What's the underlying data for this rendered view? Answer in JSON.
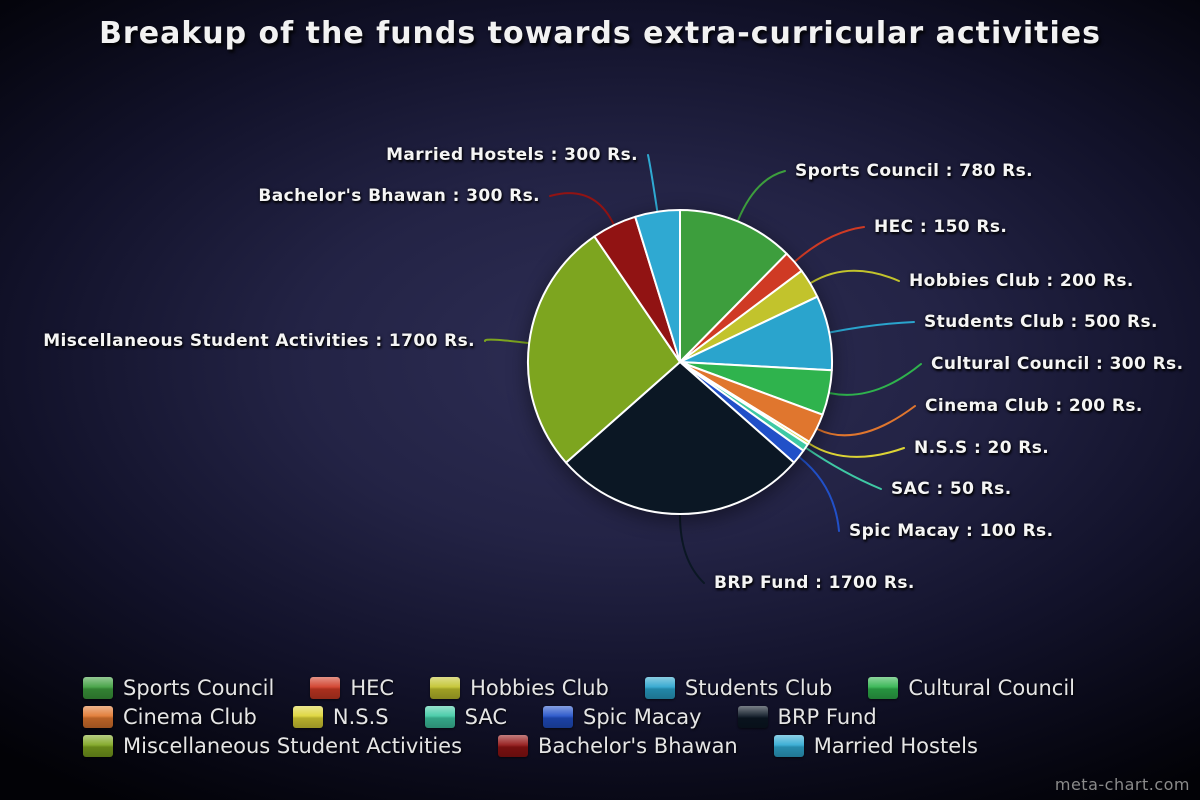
{
  "title": "Breakup of the funds towards extra-curricular activities",
  "watermark": "meta-chart.com",
  "chart_data": {
    "type": "pie",
    "title": "Breakup of the funds towards extra-curricular activities",
    "unit": "Rs.",
    "total": 6300,
    "start_angle_deg": 0,
    "direction": "clockwise",
    "legend_position": "bottom",
    "background_colors": {
      "inner": "#2e2e55",
      "outer": "#05050e"
    },
    "slices": [
      {
        "label": "Sports Council",
        "value": 780,
        "color": "#3d9e3d",
        "callout": "Sports Council : 780 Rs."
      },
      {
        "label": "HEC",
        "value": 150,
        "color": "#cf3a24",
        "callout": "HEC : 150 Rs."
      },
      {
        "label": "Hobbies Club",
        "value": 200,
        "color": "#c2c32c",
        "callout": "Hobbies Club : 200 Rs."
      },
      {
        "label": "Students Club",
        "value": 500,
        "color": "#2aa4cd",
        "callout": "Students Club : 500 Rs."
      },
      {
        "label": "Cultural Council",
        "value": 300,
        "color": "#2fb34d",
        "callout": "Cultural Council : 300 Rs."
      },
      {
        "label": "Cinema Club",
        "value": 200,
        "color": "#e0762e",
        "callout": "Cinema Club : 200 Rs."
      },
      {
        "label": "N.S.S",
        "value": 20,
        "color": "#ddd435",
        "callout": "N.S.S : 20 Rs."
      },
      {
        "label": "SAC",
        "value": 50,
        "color": "#3fc9a4",
        "callout": "SAC : 50 Rs."
      },
      {
        "label": "Spic Macay",
        "value": 100,
        "color": "#2150c8",
        "callout": "Spic Macay : 100 Rs."
      },
      {
        "label": "BRP Fund",
        "value": 1700,
        "color": "#0b1724",
        "callout": "BRP Fund : 1700 Rs."
      },
      {
        "label": "Miscellaneous Student Activities",
        "value": 1700,
        "color": "#7da51f",
        "callout": "Miscellaneous Student Activities : 1700 Rs."
      },
      {
        "label": "Bachelor's Bhawan",
        "value": 300,
        "color": "#911313",
        "callout": "Bachelor's Bhawan : 300 Rs."
      },
      {
        "label": "Married Hostels",
        "value": 300,
        "color": "#2fa9d2",
        "callout": "Married Hostels : 300 Rs."
      }
    ]
  }
}
